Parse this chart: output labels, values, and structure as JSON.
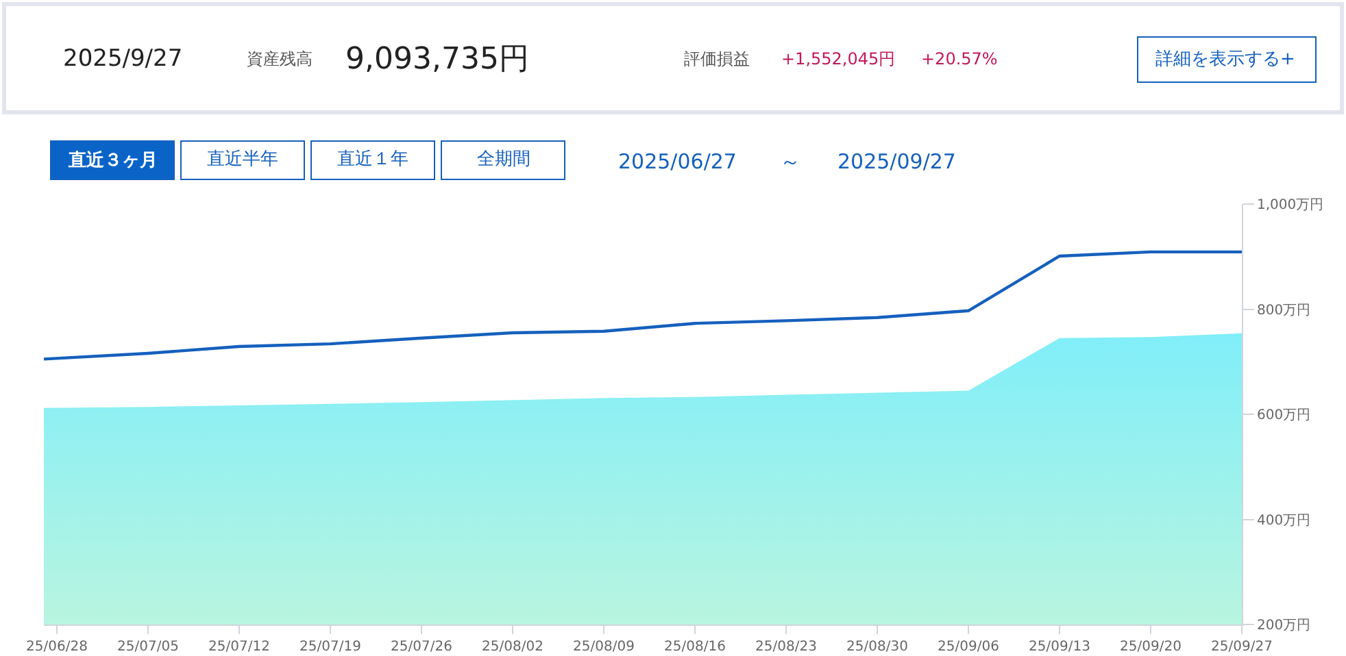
{
  "chart_data": {
    "type": "line",
    "x": [
      "2025-06-27",
      "2025-07-05",
      "2025-07-12",
      "2025-07-19",
      "2025-07-26",
      "2025-08-02",
      "2025-08-09",
      "2025-08-16",
      "2025-08-23",
      "2025-08-30",
      "2025-09-06",
      "2025-09-13",
      "2025-09-20",
      "2025-09-27"
    ],
    "series": [
      {
        "type": "area",
        "color": "#80eef9",
        "values": [
          612,
          614,
          617,
          620,
          623,
          627,
          631,
          633,
          637,
          641,
          645,
          745,
          747,
          754
        ]
      },
      {
        "color": "#1560bd",
        "values": [
          705,
          716,
          729,
          734,
          745,
          755,
          758,
          773,
          778,
          784,
          797,
          901,
          909,
          909
        ]
      }
    ],
    "xlim": [
      "2025-06-27",
      "2025-09-27"
    ],
    "xticks": [
      {
        "value": "2025-06-28",
        "label": "25/06/28"
      },
      {
        "value": "2025-07-05",
        "label": "25/07/05"
      },
      {
        "value": "2025-07-12",
        "label": "25/07/12"
      },
      {
        "value": "2025-07-19",
        "label": "25/07/19"
      },
      {
        "value": "2025-07-26",
        "label": "25/07/26"
      },
      {
        "value": "2025-08-02",
        "label": "25/08/02"
      },
      {
        "value": "2025-08-09",
        "label": "25/08/09"
      },
      {
        "value": "2025-08-16",
        "label": "25/08/16"
      },
      {
        "value": "2025-08-23",
        "label": "25/08/23"
      },
      {
        "value": "2025-08-30",
        "label": "25/08/30"
      },
      {
        "value": "2025-09-06",
        "label": "25/09/06"
      },
      {
        "value": "2025-09-13",
        "label": "25/09/13"
      },
      {
        "value": "2025-09-20",
        "label": "25/09/20"
      },
      {
        "value": "2025-09-27",
        "label": "25/09/27"
      }
    ],
    "ylim": [
      200,
      1000
    ],
    "yticks": [
      {
        "value": 200,
        "label": "200万円"
      },
      {
        "value": 400,
        "label": "400万円"
      },
      {
        "value": 600,
        "label": "600万円"
      },
      {
        "value": 800,
        "label": "800万円"
      },
      {
        "value": 1000,
        "label": "1,000万円"
      }
    ],
    "marker": "none",
    "line_style": "solid",
    "annotations": [
      "2025/9/27",
      "資産残高",
      "9,093,735円",
      "評価損益",
      "+1,552,045円",
      "+20.57%",
      "詳細を表示する+",
      "直近３ヶ月",
      "直近半年",
      "直近１年",
      "全期間",
      "2025/06/27",
      "～",
      "2025/09/27"
    ]
  }
}
